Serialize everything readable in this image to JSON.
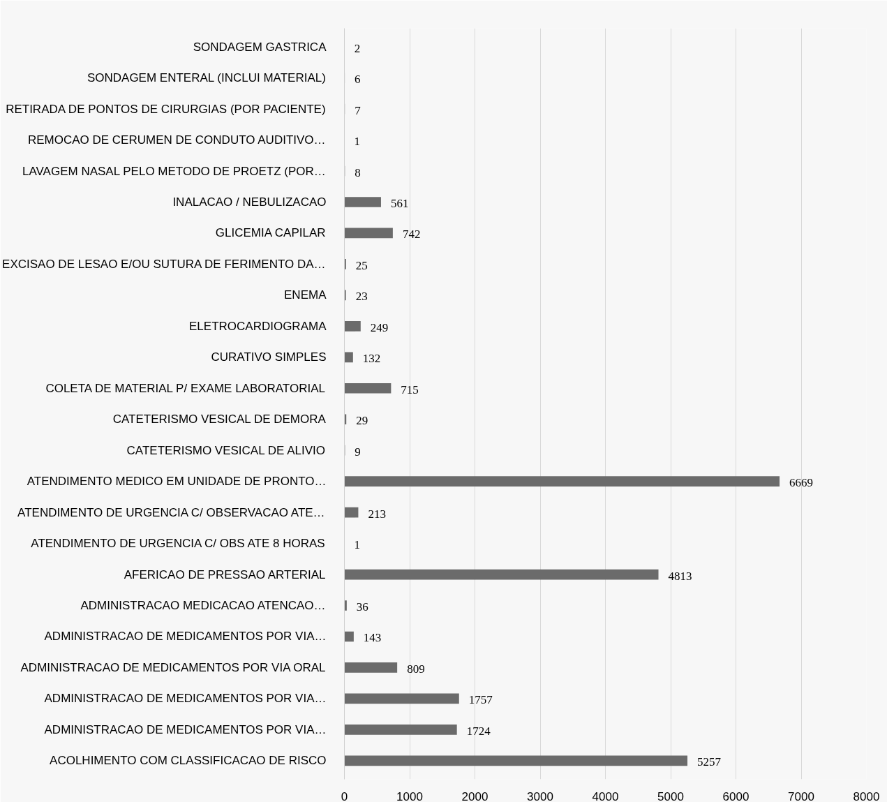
{
  "chart_data": {
    "type": "bar",
    "orientation": "horizontal",
    "categories": [
      "SONDAGEM GASTRICA",
      "SONDAGEM ENTERAL (INCLUI MATERIAL)",
      "RETIRADA DE PONTOS DE CIRURGIAS (POR PACIENTE)",
      "REMOCAO DE CERUMEN DE CONDUTO AUDITIVO…",
      "LAVAGEM NASAL PELO METODO DE PROETZ (POR…",
      "INALACAO / NEBULIZACAO",
      "GLICEMIA CAPILAR",
      "EXCISAO DE LESAO E/OU SUTURA DE FERIMENTO DA…",
      "ENEMA",
      "ELETROCARDIOGRAMA",
      "CURATIVO SIMPLES",
      "COLETA DE MATERIAL P/ EXAME LABORATORIAL",
      "CATETERISMO VESICAL DE DEMORA",
      "CATETERISMO VESICAL DE ALIVIO",
      "ATENDIMENTO MEDICO EM UNIDADE DE PRONTO…",
      "ATENDIMENTO DE URGENCIA C/ OBSERVACAO ATE…",
      "ATENDIMENTO DE URGENCIA C/ OBS ATE 8 HORAS",
      "AFERICAO DE PRESSAO ARTERIAL",
      "ADMINISTRACAO MEDICACAO ATENCAO…",
      "ADMINISTRACAO DE MEDICAMENTOS POR VIA…",
      "ADMINISTRACAO DE MEDICAMENTOS POR VIA ORAL",
      "ADMINISTRACAO DE MEDICAMENTOS POR VIA…",
      "ADMINISTRACAO DE MEDICAMENTOS POR VIA…",
      "ACOLHIMENTO COM CLASSIFICACAO DE RISCO"
    ],
    "values": [
      2,
      6,
      7,
      1,
      8,
      561,
      742,
      25,
      23,
      249,
      132,
      715,
      29,
      9,
      6669,
      213,
      1,
      4813,
      36,
      143,
      809,
      1757,
      1724,
      5257
    ],
    "color": "#6b6b6b",
    "xlim": [
      0,
      8000
    ],
    "xticks": [
      0,
      1000,
      2000,
      3000,
      4000,
      5000,
      6000,
      7000,
      8000
    ],
    "grid": "x",
    "data_labels": true
  }
}
